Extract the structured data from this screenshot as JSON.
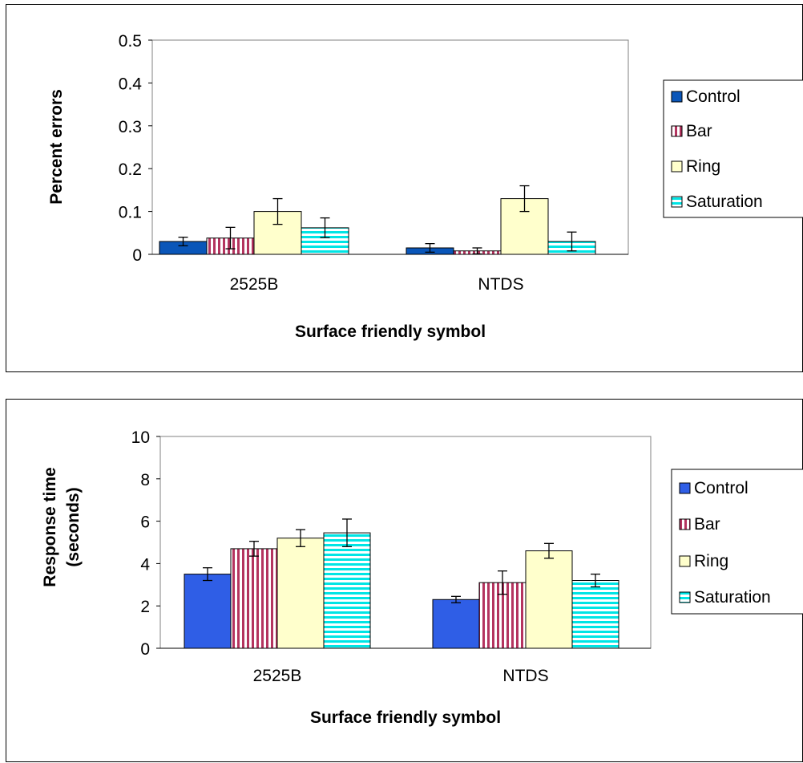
{
  "colors": {
    "plot_border": "#808080",
    "control_top": "#0a56b9",
    "control_bottom": "#2f5ee6",
    "bar_stripe": "#b4345f",
    "ring_fill": "#ffffcc",
    "saturation_stripe": "#00e5e5"
  },
  "chart_data": [
    {
      "type": "bar",
      "title": "",
      "xlabel": "Surface friendly symbol",
      "ylabel": "Percent errors",
      "ylim": [
        0,
        0.5
      ],
      "yticks": [
        "0",
        "0.1",
        "0.2",
        "0.3",
        "0.4",
        "0.5"
      ],
      "grid": false,
      "legend_position": "right",
      "categories": [
        "2525B",
        "NTDS"
      ],
      "series": [
        {
          "name": "Control",
          "values": [
            0.03,
            0.015
          ],
          "errors": [
            0.01,
            0.01
          ]
        },
        {
          "name": "Bar",
          "values": [
            0.038,
            0.008
          ],
          "errors": [
            0.025,
            0.007
          ]
        },
        {
          "name": "Ring",
          "values": [
            0.1,
            0.13
          ],
          "errors": [
            0.03,
            0.03
          ]
        },
        {
          "name": "Saturation",
          "values": [
            0.062,
            0.03
          ],
          "errors": [
            0.023,
            0.022
          ]
        }
      ]
    },
    {
      "type": "bar",
      "title": "",
      "xlabel": "Surface friendly symbol",
      "ylabel": [
        "Response time",
        "(seconds)"
      ],
      "ylim": [
        0,
        10
      ],
      "yticks": [
        "0",
        "2",
        "4",
        "6",
        "8",
        "10"
      ],
      "grid": false,
      "legend_position": "right",
      "categories": [
        "2525B",
        "NTDS"
      ],
      "series": [
        {
          "name": "Control",
          "values": [
            3.5,
            2.3
          ],
          "errors": [
            0.3,
            0.15
          ]
        },
        {
          "name": "Bar",
          "values": [
            4.7,
            3.1
          ],
          "errors": [
            0.35,
            0.55
          ]
        },
        {
          "name": "Ring",
          "values": [
            5.2,
            4.6
          ],
          "errors": [
            0.4,
            0.35
          ]
        },
        {
          "name": "Saturation",
          "values": [
            5.45,
            3.2
          ],
          "errors": [
            0.65,
            0.3
          ]
        }
      ]
    }
  ]
}
